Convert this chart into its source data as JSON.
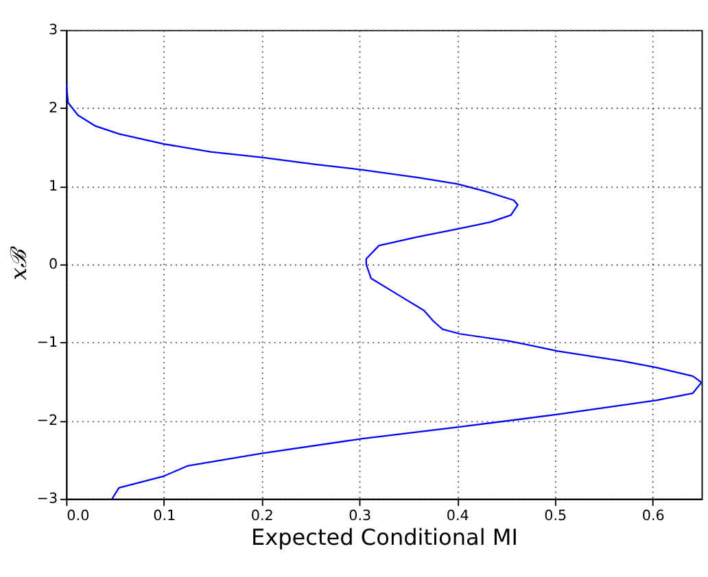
{
  "chart_data": {
    "type": "line",
    "xlabel": "Expected Conditional MI",
    "ylabel": "xℬ",
    "x": [
      0,
      0.002,
      0.012,
      0.03,
      0.054,
      0.1,
      0.148,
      0.2,
      0.255,
      0.303,
      0.36,
      0.4,
      0.43,
      0.458,
      0.462,
      0.455,
      0.434,
      0.403,
      0.359,
      0.32,
      0.307,
      0.307,
      0.312,
      0.341,
      0.366,
      0.376,
      0.385,
      0.403,
      0.453,
      0.503,
      0.57,
      0.604,
      0.641,
      0.65,
      0.641,
      0.604,
      0.503,
      0.403,
      0.303,
      0.2,
      0.124,
      0.1,
      0.054,
      0.047
    ],
    "series": [
      {
        "color": "#0000ff",
        "values": [
          2.32,
          2.07,
          1.91,
          1.77,
          1.67,
          1.54,
          1.44,
          1.37,
          1.28,
          1.21,
          1.11,
          1.03,
          0.93,
          0.82,
          0.76,
          0.63,
          0.54,
          0.46,
          0.35,
          0.24,
          0.07,
          0,
          -0.18,
          -0.4,
          -0.59,
          -0.73,
          -0.83,
          -0.89,
          -0.98,
          -1.11,
          -1.24,
          -1.32,
          -1.43,
          -1.51,
          -1.65,
          -1.74,
          -1.92,
          -2.08,
          -2.23,
          -2.42,
          -2.58,
          -2.71,
          -2.86,
          -3.0
        ]
      }
    ],
    "xlim": [
      0,
      0.65
    ],
    "xticks": [
      {
        "value": 0,
        "label": "0.0"
      },
      0.1,
      0.2,
      0.3,
      0.4,
      0.5,
      0.6
    ],
    "ylim": [
      -3,
      3
    ],
    "yticks": [
      -3,
      -2,
      -1,
      0,
      1,
      2,
      3
    ],
    "grid": true
  }
}
